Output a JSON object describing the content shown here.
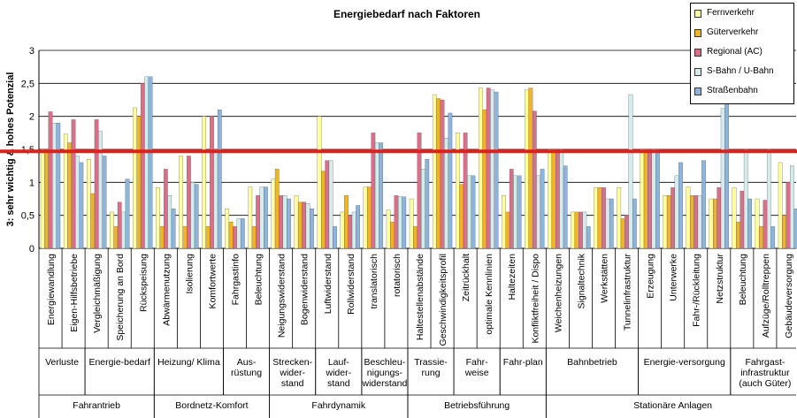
{
  "chart_data": {
    "type": "bar",
    "title": "Energiebedarf nach Faktoren",
    "ylabel": "3: sehr wichtig & hohes Potenzial",
    "xlabel": "",
    "ylim": [
      0,
      3
    ],
    "yticks": [
      "0",
      "0,5",
      "1",
      "1,5",
      "2",
      "2,5",
      "3"
    ],
    "grid": true,
    "legend_position": "top-right",
    "reference_line": {
      "value": 1.47,
      "color": "#e0201a"
    },
    "categories": [
      "Energiewandlung",
      "Eigen-Hilfsbetriebe",
      "Vergleichmäßigung",
      "Speicherung an Bord",
      "Rückspeisung",
      "Abwärmenutzung",
      "Isolierung",
      "Komfortwerte",
      "Fahrgastinfo",
      "Beleuchtung",
      "Neigungswiderstand",
      "Bogenwiderstand",
      "Luftwiderstand",
      "Rollwiderstand",
      "translatorisch",
      "rotatorisch",
      "Haltestellenabstände",
      "Geschwindigkeitsprofil",
      "Zeitrückhalt",
      "optimale Kennlinien",
      "Haltezeiten",
      "Konfliktfreiheit / Dispo",
      "Weichenheizungen",
      "Signaltechnik",
      "Werkstätten",
      "Tunnelinfrastruktur",
      "Erzeugung",
      "Unterwerke",
      "Fahr-/Rückleitung",
      "Netzstruktur",
      "Beleuchtung",
      "Aufzüge/Rolltreppen",
      "Gebäudeversorgung"
    ],
    "series": [
      {
        "name": "Fernverkehr",
        "color": "#ffffa0",
        "values": [
          1.5,
          1.73,
          1.35,
          0.55,
          2.13,
          0.92,
          1.4,
          2.0,
          0.6,
          0.93,
          1.05,
          0.8,
          2.0,
          0.55,
          0.93,
          0.58,
          0.75,
          2.33,
          1.75,
          2.43,
          0.8,
          2.4,
          1.5,
          0.55,
          0.92,
          0.92,
          1.5,
          0.8,
          0.93,
          0.75,
          0.92,
          0.75,
          1.3
        ]
      },
      {
        "name": "Güterverkehr",
        "color": "#f0b428",
        "values": [
          1.5,
          1.6,
          0.83,
          0.33,
          2.0,
          0.33,
          0.33,
          0.33,
          0.4,
          0.33,
          1.2,
          0.7,
          1.17,
          0.8,
          0.93,
          0.4,
          0.33,
          2.27,
          0.97,
          2.1,
          0.55,
          2.43,
          1.5,
          0.55,
          0.92,
          0.45,
          1.5,
          0.8,
          0.8,
          0.75,
          0.4,
          0.33,
          0.5
        ]
      },
      {
        "name": "Regional (AC)",
        "color": "#d9708a",
        "values": [
          2.07,
          1.95,
          1.95,
          0.7,
          2.5,
          1.2,
          1.4,
          2.0,
          0.33,
          0.8,
          0.8,
          0.7,
          1.33,
          0.5,
          1.75,
          0.8,
          1.75,
          2.25,
          1.75,
          2.43,
          1.2,
          2.08,
          1.5,
          0.55,
          0.92,
          0.5,
          1.5,
          0.92,
          0.8,
          0.92,
          0.87,
          0.73,
          1.0
        ]
      },
      {
        "name": "S-Bahn / U-Bahn",
        "color": "#d4ecec",
        "values": [
          1.9,
          1.4,
          1.77,
          0.55,
          2.6,
          0.8,
          1.0,
          1.5,
          0.45,
          0.93,
          0.8,
          0.68,
          1.33,
          0.55,
          1.6,
          0.78,
          1.2,
          1.67,
          1.1,
          2.4,
          1.1,
          1.1,
          1.5,
          0.55,
          0.75,
          2.33,
          1.5,
          1.1,
          0.8,
          2.12,
          1.5,
          1.5,
          1.25
        ]
      },
      {
        "name": "Straßenbahn",
        "color": "#8cb4dc",
        "values": [
          1.9,
          1.3,
          1.4,
          1.05,
          2.6,
          0.6,
          0.97,
          2.1,
          0.45,
          0.93,
          0.75,
          0.6,
          0.33,
          0.65,
          1.6,
          0.78,
          1.35,
          2.05,
          1.1,
          2.37,
          1.1,
          1.2,
          1.25,
          0.33,
          0.75,
          0.75,
          1.5,
          1.3,
          1.33,
          2.43,
          0.75,
          0.33,
          0.6
        ]
      }
    ],
    "level1": [
      {
        "label": "Verluste",
        "span": [
          0,
          1
        ]
      },
      {
        "label": "Energie-bedarf",
        "span": [
          2,
          4
        ]
      },
      {
        "label": "Heizung/ Klima",
        "span": [
          5,
          7
        ]
      },
      {
        "label": "Aus-rüstung",
        "span": [
          8,
          9
        ]
      },
      {
        "label": "Strecken-wider-stand",
        "span": [
          10,
          11
        ]
      },
      {
        "label": "Lauf-wider-stand",
        "span": [
          12,
          13
        ]
      },
      {
        "label": "Beschleu-nigungs-widerstand",
        "span": [
          14,
          15
        ]
      },
      {
        "label": "Trassie-rung",
        "span": [
          16,
          17
        ]
      },
      {
        "label": "Fahr-weise",
        "span": [
          18,
          19
        ]
      },
      {
        "label": "Fahr-plan",
        "span": [
          20,
          21
        ]
      },
      {
        "label": "Bahnbetrieb",
        "span": [
          22,
          25
        ]
      },
      {
        "label": "Energie-versorgung",
        "span": [
          26,
          29
        ]
      },
      {
        "label": "Fahrgast-infrastruktur (auch Güter)",
        "span": [
          30,
          32
        ]
      }
    ],
    "level2": [
      {
        "label": "Fahrantrieb",
        "span": [
          0,
          4
        ]
      },
      {
        "label": "Bordnetz-Komfort",
        "span": [
          5,
          9
        ]
      },
      {
        "label": "Fahrdynamik",
        "span": [
          10,
          15
        ]
      },
      {
        "label": "Betriebsführung",
        "span": [
          16,
          21
        ]
      },
      {
        "label": "Stationäre Anlagen",
        "span": [
          22,
          32
        ]
      }
    ]
  }
}
